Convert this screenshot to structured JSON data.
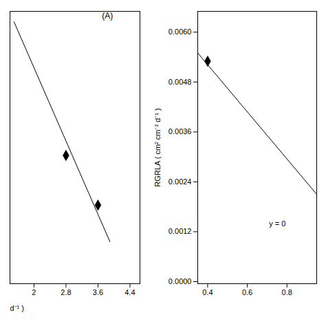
{
  "chart_data": [
    {
      "type": "line",
      "annotations": [
        "(A)",
        "d⁻¹ )"
      ],
      "series": [
        {
          "type": "line",
          "x": [
            1.5,
            3.9
          ],
          "values": [
            0.0048,
            0.0006
          ],
          "color": "#000000",
          "line_style": "solid"
        },
        {
          "type": "scatter",
          "x": [
            2.8,
            3.6
          ],
          "values": [
            0.00225,
            0.0013
          ],
          "color": "#000000",
          "marker": "diamond"
        }
      ],
      "xlim": [
        1.4,
        4.65
      ],
      "xticks": [
        2.0,
        2.8,
        3.6,
        4.4
      ],
      "ylim": [
        -0.0002,
        0.005
      ],
      "yticks": [],
      "tick_labels": "x"
    },
    {
      "type": "line",
      "y_label": "RGRLA ( cm² cm⁻² d⁻¹ )",
      "annotations": [
        "y = 0"
      ],
      "series": [
        {
          "type": "line",
          "x": [
            0.35,
            0.95
          ],
          "values": [
            0.0055,
            0.0021
          ],
          "color": "#000000",
          "line_style": "solid"
        },
        {
          "type": "scatter",
          "x": [
            0.4
          ],
          "values": [
            0.0053
          ],
          "color": "#000000",
          "marker": "diamond"
        }
      ],
      "xlim": [
        0.35,
        0.95
      ],
      "xticks": [
        0.4,
        0.6,
        0.8
      ],
      "ylim": [
        -5e-05,
        0.0065
      ],
      "yticks": [
        {
          "value": 0.0,
          "label": "0.0000"
        },
        0.0012,
        0.0024,
        0.0036,
        0.0048,
        {
          "value": 0.006,
          "label": "0.0060"
        }
      ]
    }
  ]
}
